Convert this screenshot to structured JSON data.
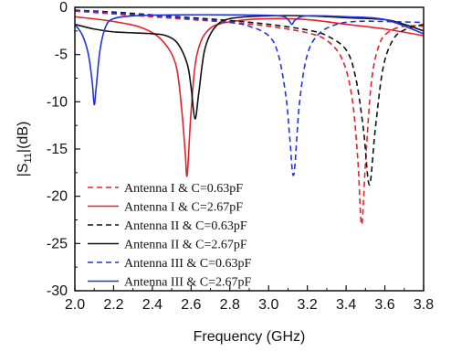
{
  "chart_data": {
    "type": "line",
    "xlabel": "Frequency (GHz)",
    "ylabel": "|S11|(dB)",
    "ylabel_main": "|S",
    "ylabel_sub": "11",
    "ylabel_rest": "|(dB)",
    "xlim": [
      2.0,
      3.8
    ],
    "ylim": [
      -30,
      0
    ],
    "xticks": [
      2.0,
      2.2,
      2.4,
      2.6,
      2.8,
      3.0,
      3.2,
      3.4,
      3.6,
      3.8
    ],
    "xtick_labels": [
      "2.0",
      "2.2",
      "2.4",
      "2.6",
      "2.8",
      "3.0",
      "3.2",
      "3.4",
      "3.6",
      "3.8"
    ],
    "yticks": [
      0,
      -5,
      -10,
      -15,
      -20,
      -25,
      -30
    ],
    "ytick_labels": [
      "0",
      "-5",
      "-10",
      "-15",
      "-20",
      "-25",
      "-30"
    ],
    "grid": false,
    "legend_position": "bottom-left",
    "series": [
      {
        "name": "Antenna I & C=0.63pF",
        "color": "#e8202a",
        "dash": true,
        "x": [
          2.0,
          2.2,
          2.4,
          2.6,
          2.8,
          3.0,
          3.2,
          3.3,
          3.38,
          3.43,
          3.46,
          3.48,
          3.5,
          3.53,
          3.57,
          3.62,
          3.7,
          3.8
        ],
        "y": [
          -0.4,
          -0.7,
          -1.0,
          -1.3,
          -1.6,
          -2.0,
          -2.7,
          -3.5,
          -5.5,
          -9.5,
          -16.0,
          -23.0,
          -16.5,
          -8.0,
          -4.0,
          -2.6,
          -2.0,
          -2.0
        ]
      },
      {
        "name": "Antenna I & C=2.67pF",
        "color": "#e8202a",
        "dash": false,
        "x": [
          2.0,
          2.2,
          2.35,
          2.45,
          2.52,
          2.55,
          2.57,
          2.58,
          2.6,
          2.63,
          2.7,
          2.85,
          3.0,
          3.2,
          3.4,
          3.6,
          3.8
        ],
        "y": [
          -1.0,
          -1.5,
          -2.2,
          -3.5,
          -6.0,
          -10.5,
          -15.5,
          -17.7,
          -11.0,
          -5.0,
          -2.2,
          -1.4,
          -1.2,
          -1.3,
          -1.8,
          -2.3,
          -3.0
        ]
      },
      {
        "name": "Antenna II & C=0.63pF",
        "color": "#111111",
        "dash": true,
        "x": [
          2.0,
          2.2,
          2.4,
          2.6,
          2.8,
          3.0,
          3.2,
          3.3,
          3.4,
          3.45,
          3.49,
          3.52,
          3.55,
          3.59,
          3.64,
          3.7,
          3.8
        ],
        "y": [
          -0.3,
          -0.5,
          -0.8,
          -1.1,
          -1.4,
          -1.8,
          -2.4,
          -3.0,
          -4.5,
          -7.5,
          -13.0,
          -18.8,
          -13.0,
          -6.5,
          -3.5,
          -2.4,
          -1.8
        ]
      },
      {
        "name": "Antenna II & C=2.67pF",
        "color": "#111111",
        "dash": false,
        "x": [
          2.0,
          2.1,
          2.2,
          2.3,
          2.4,
          2.47,
          2.53,
          2.58,
          2.6,
          2.62,
          2.64,
          2.67,
          2.72,
          2.8,
          3.0,
          3.2,
          3.4,
          3.6,
          3.7,
          3.8
        ],
        "y": [
          -1.8,
          -2.3,
          -2.6,
          -2.7,
          -2.8,
          -3.0,
          -3.8,
          -6.0,
          -8.5,
          -11.8,
          -9.0,
          -4.5,
          -2.2,
          -1.2,
          -0.9,
          -0.9,
          -1.1,
          -1.3,
          -1.8,
          -2.5
        ]
      },
      {
        "name": "Antenna III & C=0.63pF",
        "color": "#2233dd",
        "dash": true,
        "x": [
          2.0,
          2.2,
          2.4,
          2.6,
          2.8,
          2.9,
          3.0,
          3.05,
          3.09,
          3.11,
          3.13,
          3.16,
          3.2,
          3.26,
          3.35,
          3.45,
          3.6,
          3.8
        ],
        "y": [
          -0.3,
          -0.6,
          -0.9,
          -1.2,
          -1.6,
          -2.0,
          -3.0,
          -5.0,
          -9.5,
          -14.0,
          -17.7,
          -10.0,
          -5.0,
          -2.8,
          -1.8,
          -1.5,
          -1.5,
          -1.6
        ]
      },
      {
        "name": "Antenna III & C=2.67pF",
        "color": "#2233dd",
        "dash": false,
        "x": [
          2.0,
          2.04,
          2.07,
          2.09,
          2.1,
          2.11,
          2.13,
          2.16,
          2.2,
          2.3,
          2.5,
          2.8,
          3.05,
          3.1,
          3.12,
          3.14,
          3.2,
          3.4,
          3.6,
          3.8
        ],
        "y": [
          -1.8,
          -3.0,
          -5.0,
          -8.0,
          -10.3,
          -8.5,
          -4.5,
          -2.0,
          -1.2,
          -0.9,
          -0.8,
          -0.8,
          -0.9,
          -1.3,
          -1.8,
          -1.3,
          -0.9,
          -1.0,
          -1.3,
          -2.8
        ]
      }
    ]
  }
}
